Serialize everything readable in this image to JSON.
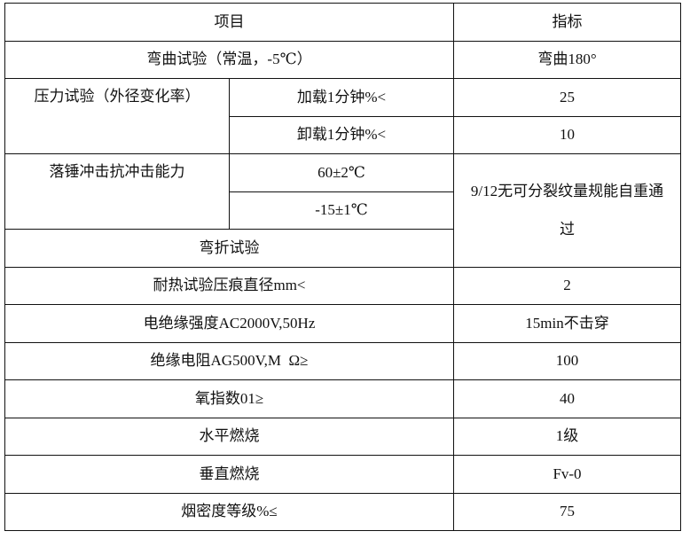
{
  "table": {
    "header": {
      "item": "项目",
      "index": "指标"
    },
    "bending": {
      "item": "弯曲试验（常温，-5℃）",
      "value": "弯曲180°"
    },
    "pressure": {
      "item": "压力试验（外径变化率）",
      "rows": [
        {
          "condition": "加载1分钟%<",
          "value": "25"
        },
        {
          "condition": "卸载1分钟%<",
          "value": "10"
        }
      ]
    },
    "impact": {
      "item": "落锤冲击抗冲击能力",
      "conditions": [
        "60±2℃",
        "-15±1℃"
      ],
      "value": "9/12无可分裂纹量规能自重通过"
    },
    "fold": {
      "item": "弯折试验"
    },
    "rows": [
      {
        "item": "耐热试验压痕直径mm<",
        "value": "2"
      },
      {
        "item": "电绝缘强度AC2000V,50Hz",
        "value": "15min不击穿"
      },
      {
        "item": "绝缘电阻AG500V,M  Ω≥",
        "value": "100"
      },
      {
        "item": "氧指数01≥",
        "value": "40"
      },
      {
        "item": "水平燃烧",
        "value": "1级"
      },
      {
        "item": "垂直燃烧",
        "value": "Fv-0"
      },
      {
        "item": "烟密度等级%≤",
        "value": "75"
      }
    ]
  }
}
